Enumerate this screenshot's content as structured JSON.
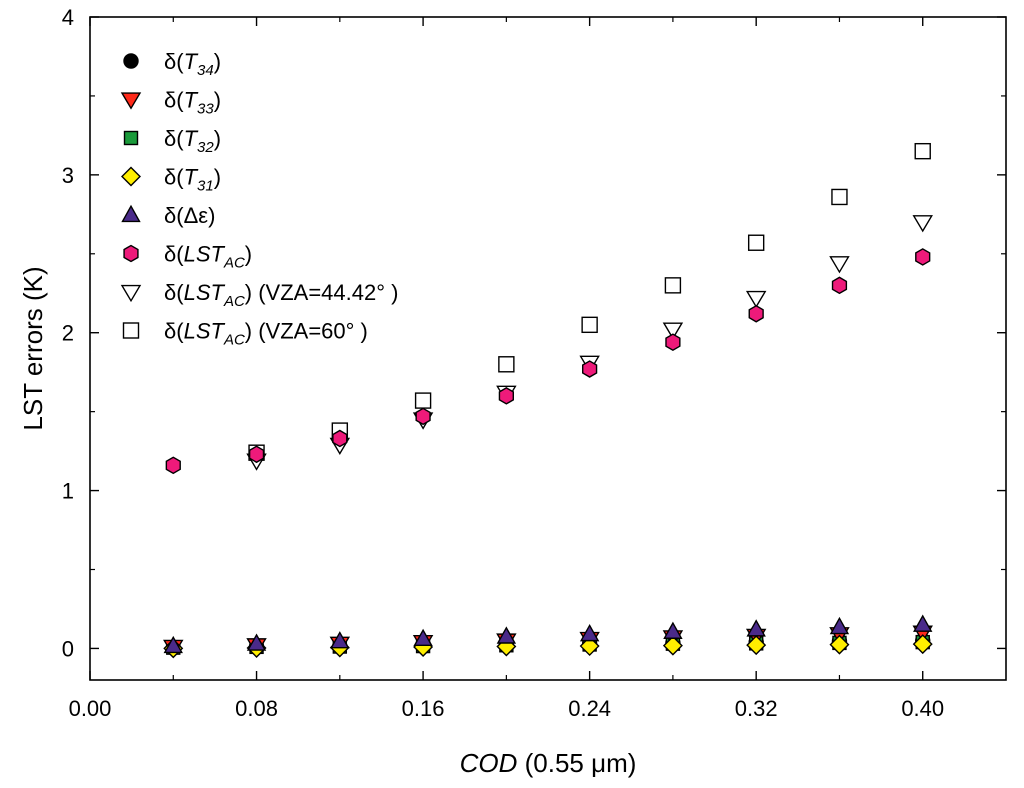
{
  "chart_data": {
    "type": "scatter",
    "title": "",
    "xlabel": {
      "italic": "COD",
      "rest": " (0.55 μm)"
    },
    "ylabel": "LST errors (K)",
    "xlim": [
      0.0,
      0.44
    ],
    "ylim": [
      -0.2,
      4.0
    ],
    "xticks": [
      0.0,
      0.08,
      0.16,
      0.24,
      0.32,
      0.4
    ],
    "xtick_labels": [
      "0.00",
      "0.08",
      "0.16",
      "0.24",
      "0.32",
      "0.40"
    ],
    "yticks": [
      0,
      1,
      2,
      3,
      4
    ],
    "ytick_labels": [
      "0",
      "1",
      "2",
      "3",
      "4"
    ],
    "grid": false,
    "legend_position": "top-left",
    "x": [
      0.04,
      0.08,
      0.12,
      0.16,
      0.2,
      0.24,
      0.28,
      0.32,
      0.36,
      0.4
    ],
    "series": [
      {
        "name": "δ(T34)",
        "legend": {
          "pre": "δ(",
          "italic": "T",
          "sub": "34",
          "post": ")"
        },
        "marker": "circle",
        "fill": "#000000",
        "stroke": "#000000",
        "values": [
          0.005,
          0.01,
          0.015,
          0.02,
          0.025,
          0.03,
          0.035,
          0.04,
          0.045,
          0.05
        ]
      },
      {
        "name": "δ(T33)",
        "legend": {
          "pre": "δ(",
          "italic": "T",
          "sub": "33",
          "post": ")"
        },
        "marker": "triangle-down",
        "fill": "#ff2a1a",
        "stroke": "#000000",
        "values": [
          0.01,
          0.02,
          0.03,
          0.04,
          0.05,
          0.06,
          0.07,
          0.08,
          0.09,
          0.1
        ]
      },
      {
        "name": "δ(T32)",
        "legend": {
          "pre": "δ(",
          "italic": "T",
          "sub": "32",
          "post": ")"
        },
        "marker": "square",
        "fill": "#1a9a3a",
        "stroke": "#000000",
        "values": [
          0.005,
          0.01,
          0.012,
          0.015,
          0.02,
          0.025,
          0.03,
          0.032,
          0.035,
          0.04
        ]
      },
      {
        "name": "δ(T31)",
        "legend": {
          "pre": "δ(",
          "italic": "T",
          "sub": "31",
          "post": ")"
        },
        "marker": "diamond",
        "fill": "#ffee00",
        "stroke": "#000000",
        "values": [
          0.0,
          0.003,
          0.006,
          0.009,
          0.012,
          0.015,
          0.018,
          0.021,
          0.024,
          0.027
        ]
      },
      {
        "name": "δ(Δε)",
        "legend": {
          "pre": "δ(Δε)",
          "italic": "",
          "sub": "",
          "post": ""
        },
        "marker": "triangle-up",
        "fill": "#4a2a8a",
        "stroke": "#000000",
        "values": [
          0.015,
          0.03,
          0.045,
          0.06,
          0.075,
          0.09,
          0.105,
          0.12,
          0.135,
          0.15
        ]
      },
      {
        "name": "δ(LSTAC)",
        "legend": {
          "pre": "δ(",
          "italic": "LST",
          "sub": "AC",
          "post": ")"
        },
        "marker": "hexagon",
        "fill": "#ee1a7a",
        "stroke": "#000000",
        "values": [
          1.16,
          1.23,
          1.33,
          1.47,
          1.6,
          1.77,
          1.94,
          2.12,
          2.3,
          2.48
        ]
      },
      {
        "name": "δ(LSTAC) (VZA=44.42°)",
        "legend": {
          "pre": "δ(",
          "italic": "LST",
          "sub": "AC",
          "post": ") (VZA=44.42°  )"
        },
        "marker": "triangle-down-open",
        "fill": "#ffffff",
        "stroke": "#000000",
        "values": [
          null,
          1.19,
          1.29,
          1.45,
          1.62,
          1.81,
          2.02,
          2.22,
          2.44,
          2.7
        ]
      },
      {
        "name": "δ(LSTAC) (VZA=60°)",
        "legend": {
          "pre": "δ(",
          "italic": "LST",
          "sub": "AC",
          "post": ") (VZA=60°  )"
        },
        "marker": "square-open",
        "fill": "#ffffff",
        "stroke": "#000000",
        "values": [
          null,
          1.24,
          1.38,
          1.57,
          1.8,
          2.05,
          2.3,
          2.57,
          2.86,
          3.15
        ]
      }
    ]
  }
}
